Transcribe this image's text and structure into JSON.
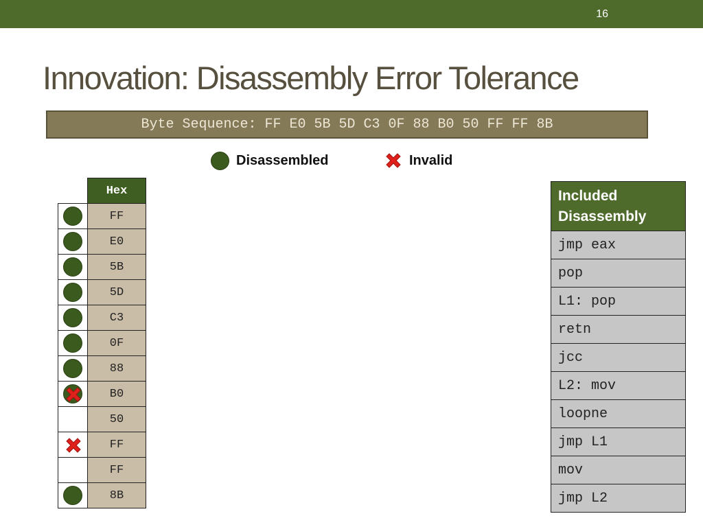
{
  "slide": {
    "number": "16",
    "title": "Innovation: Disassembly Error Tolerance"
  },
  "byte_sequence": "Byte Sequence: FF E0 5B 5D C3 0F 88 B0 50 FF FF 8B",
  "legend": {
    "disassembled_label": "Disassembled",
    "invalid_label": "Invalid"
  },
  "hex_table": {
    "header": "Hex",
    "rows": [
      {
        "hex": "FF",
        "status": "disassembled"
      },
      {
        "hex": "E0",
        "status": "disassembled"
      },
      {
        "hex": "5B",
        "status": "disassembled"
      },
      {
        "hex": "5D",
        "status": "disassembled"
      },
      {
        "hex": "C3",
        "status": "disassembled"
      },
      {
        "hex": "0F",
        "status": "disassembled"
      },
      {
        "hex": "88",
        "status": "disassembled"
      },
      {
        "hex": "B0",
        "status": "disassembled-invalid"
      },
      {
        "hex": "50",
        "status": "none"
      },
      {
        "hex": "FF",
        "status": "invalid"
      },
      {
        "hex": "FF",
        "status": "none"
      },
      {
        "hex": "8B",
        "status": "disassembled"
      }
    ]
  },
  "disassembly_table": {
    "header": "Included Disassembly",
    "rows": [
      "jmp eax",
      "pop",
      "L1: pop",
      "retn",
      "jcc",
      "L2: mov",
      "loopne",
      "jmp L1",
      "mov",
      "jmp L2"
    ]
  },
  "colors": {
    "accent_green": "#4e6b2c",
    "dot_green": "#3b5a1e",
    "invalid_red": "#e0201b",
    "title_text": "#57503f",
    "byte_box": "#857a58"
  }
}
